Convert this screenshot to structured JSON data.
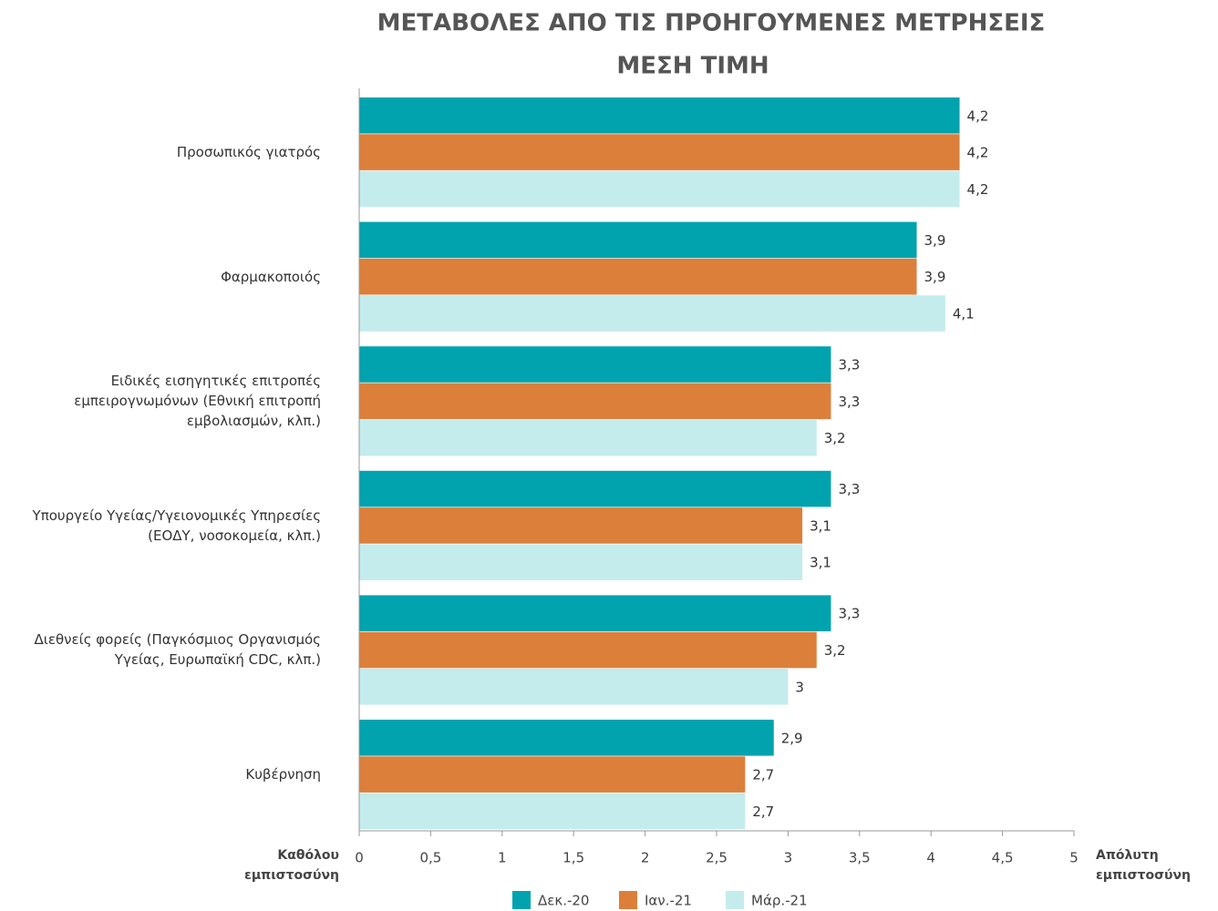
{
  "chart_data": {
    "type": "bar",
    "orientation": "horizontal",
    "title": "ΜΕΤΑΒΟΛΕΣ ΑΠΟ ΤΙΣ ΠΡΟΗΓΟΥΜΕΝΕΣ ΜΕΤΡΗΣΕΙΣ",
    "subtitle": "ΜΕΣΗ ΤΙΜΗ",
    "categories": [
      "Προσωπικός γιατρός",
      "Φαρμακοποιός",
      "Ειδικές εισηγητικές επιτροπές εμπειρογνωμόνων (Εθνική επιτροπή εμβολιασμών, κλπ.)",
      "Υπουργείο Υγείας/Υγειονομικές Υπηρεσίες (ΕΟΔΥ, νοσοκομεία, κλπ.)",
      "Διεθνείς φορείς (Παγκόσμιος Οργανισμός Υγείας, Ευρωπαϊκή CDC, κλπ.)",
      "Κυβέρνηση"
    ],
    "series": [
      {
        "name": "Δεκ.-20",
        "color": "#00a3ae",
        "values": [
          4.2,
          3.9,
          3.3,
          3.3,
          3.3,
          2.9
        ],
        "value_labels": [
          "4,2",
          "3,9",
          "3,3",
          "3,3",
          "3,3",
          "2,9"
        ]
      },
      {
        "name": "Ιαν.-21",
        "color": "#dc7f3b",
        "values": [
          4.2,
          3.9,
          3.3,
          3.1,
          3.2,
          2.7
        ],
        "value_labels": [
          "4,2",
          "3,9",
          "3,3",
          "3,1",
          "3,2",
          "2,7"
        ]
      },
      {
        "name": "Μάρ.-21",
        "color": "#c4ecec",
        "values": [
          4.2,
          4.1,
          3.2,
          3.1,
          3.0,
          2.7
        ],
        "value_labels": [
          "4,2",
          "4,1",
          "3,2",
          "3,1",
          "3",
          "2,7"
        ]
      }
    ],
    "xlim": [
      0,
      5
    ],
    "xticks": [
      0,
      {
        "value": 0.5,
        "label": "0,5"
      },
      1,
      {
        "value": 1.5,
        "label": "1,5"
      },
      2,
      {
        "value": 2.5,
        "label": "2,5"
      },
      3,
      {
        "value": 3.5,
        "label": "3,5"
      },
      4,
      {
        "value": 4.5,
        "label": "4,5"
      },
      5
    ],
    "xlabel_left": "Καθόλου εμπιστοσύνη",
    "xlabel_right": "Απόλυτη εμπιστοσύνη",
    "legend": "bottom"
  }
}
